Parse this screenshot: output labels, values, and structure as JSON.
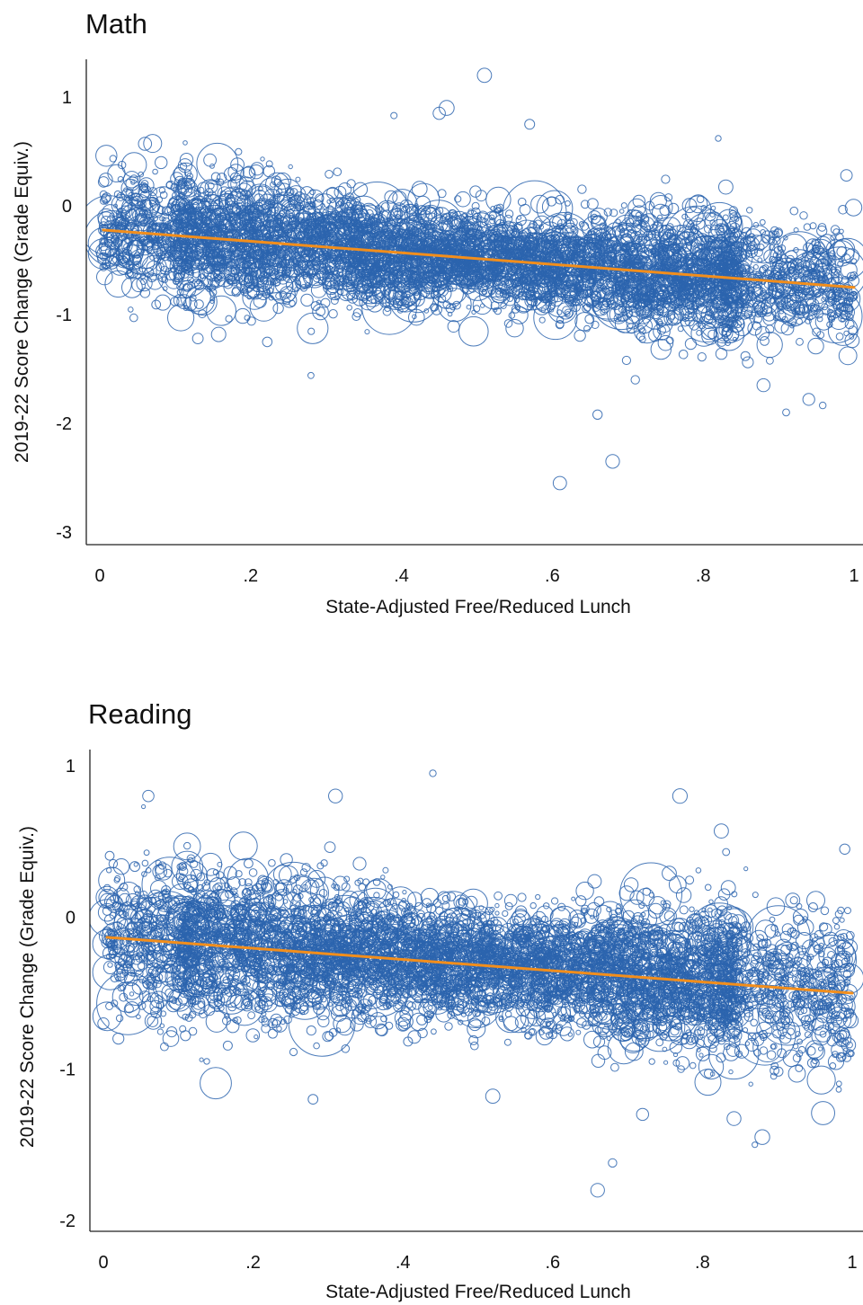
{
  "colors": {
    "points": "#2b64ae",
    "fit": "#f28e1c",
    "axis": "#222222",
    "background": "#ffffff"
  },
  "chart_data": [
    {
      "type": "scatter",
      "title": "Math",
      "xlabel": "State-Adjusted Free/Reduced Lunch",
      "ylabel": "2019-22 Score Change (Grade Equiv.)",
      "xlim": [
        0,
        1
      ],
      "ylim": [
        -3,
        1
      ],
      "xticks": [
        0,
        0.2,
        0.4,
        0.6,
        0.8,
        1
      ],
      "xtick_labels": [
        "0",
        ".2",
        ".4",
        ".6",
        ".8",
        "1"
      ],
      "yticks": [
        -3,
        -2,
        -1,
        0,
        1
      ],
      "ytick_labels": [
        "-3",
        "-2",
        "-1",
        "0",
        "1"
      ],
      "grid": false,
      "fit_line": {
        "x": [
          0,
          1
        ],
        "y": [
          -0.22,
          -0.75
        ]
      },
      "cloud": {
        "description_free": true,
        "center_x": 0.5,
        "intercept": -0.22,
        "slope": -0.53,
        "sd": 0.25
      },
      "notable_points": [
        {
          "x": 0.51,
          "y": 1.2
        },
        {
          "x": 0.46,
          "y": 0.9
        },
        {
          "x": 0.45,
          "y": 0.85
        },
        {
          "x": 0.39,
          "y": 0.83
        },
        {
          "x": 0.57,
          "y": 0.75
        },
        {
          "x": 0.06,
          "y": 0.57
        },
        {
          "x": 0.82,
          "y": 0.62
        },
        {
          "x": 0.99,
          "y": 0.28
        },
        {
          "x": 0.66,
          "y": -1.92
        },
        {
          "x": 0.68,
          "y": -2.35
        },
        {
          "x": 0.61,
          "y": -2.55
        },
        {
          "x": 0.28,
          "y": -1.56
        },
        {
          "x": 0.13,
          "y": -1.22
        },
        {
          "x": 0.88,
          "y": -1.65
        },
        {
          "x": 0.94,
          "y": -1.78
        },
        {
          "x": 0.91,
          "y": -1.9
        },
        {
          "x": 0.06,
          "y": -0.8
        },
        {
          "x": 0.71,
          "y": -1.6
        }
      ]
    },
    {
      "type": "scatter",
      "title": "Reading",
      "xlabel": "State-Adjusted Free/Reduced Lunch",
      "ylabel": "2019-22 Score Change (Grade Equiv.)",
      "xlim": [
        0,
        1
      ],
      "ylim": [
        -2,
        1
      ],
      "xticks": [
        0,
        0.2,
        0.4,
        0.6,
        0.8,
        1
      ],
      "xtick_labels": [
        "0",
        ".2",
        ".4",
        ".6",
        ".8",
        "1"
      ],
      "yticks": [
        -2,
        -1,
        0,
        1
      ],
      "ytick_labels": [
        "-2",
        "-1",
        "0",
        "1"
      ],
      "grid": false,
      "fit_line": {
        "x": [
          0,
          1
        ],
        "y": [
          -0.13,
          -0.5
        ]
      },
      "cloud": {
        "description_free": true,
        "center_x": 0.5,
        "intercept": -0.13,
        "slope": -0.37,
        "sd": 0.22
      },
      "notable_points": [
        {
          "x": 0.44,
          "y": 0.95
        },
        {
          "x": 0.06,
          "y": 0.8
        },
        {
          "x": 0.31,
          "y": 0.8
        },
        {
          "x": 0.77,
          "y": 0.8
        },
        {
          "x": 0.99,
          "y": 0.45
        },
        {
          "x": 0.66,
          "y": -1.8
        },
        {
          "x": 0.68,
          "y": -1.62
        },
        {
          "x": 0.87,
          "y": -1.5
        },
        {
          "x": 0.72,
          "y": -1.3
        },
        {
          "x": 0.28,
          "y": -1.2
        },
        {
          "x": 0.52,
          "y": -1.18
        },
        {
          "x": 0.02,
          "y": -0.8
        },
        {
          "x": 0.0,
          "y": -0.7
        },
        {
          "x": 0.09,
          "y": -0.8
        },
        {
          "x": 0.88,
          "y": -1.45
        }
      ]
    }
  ]
}
